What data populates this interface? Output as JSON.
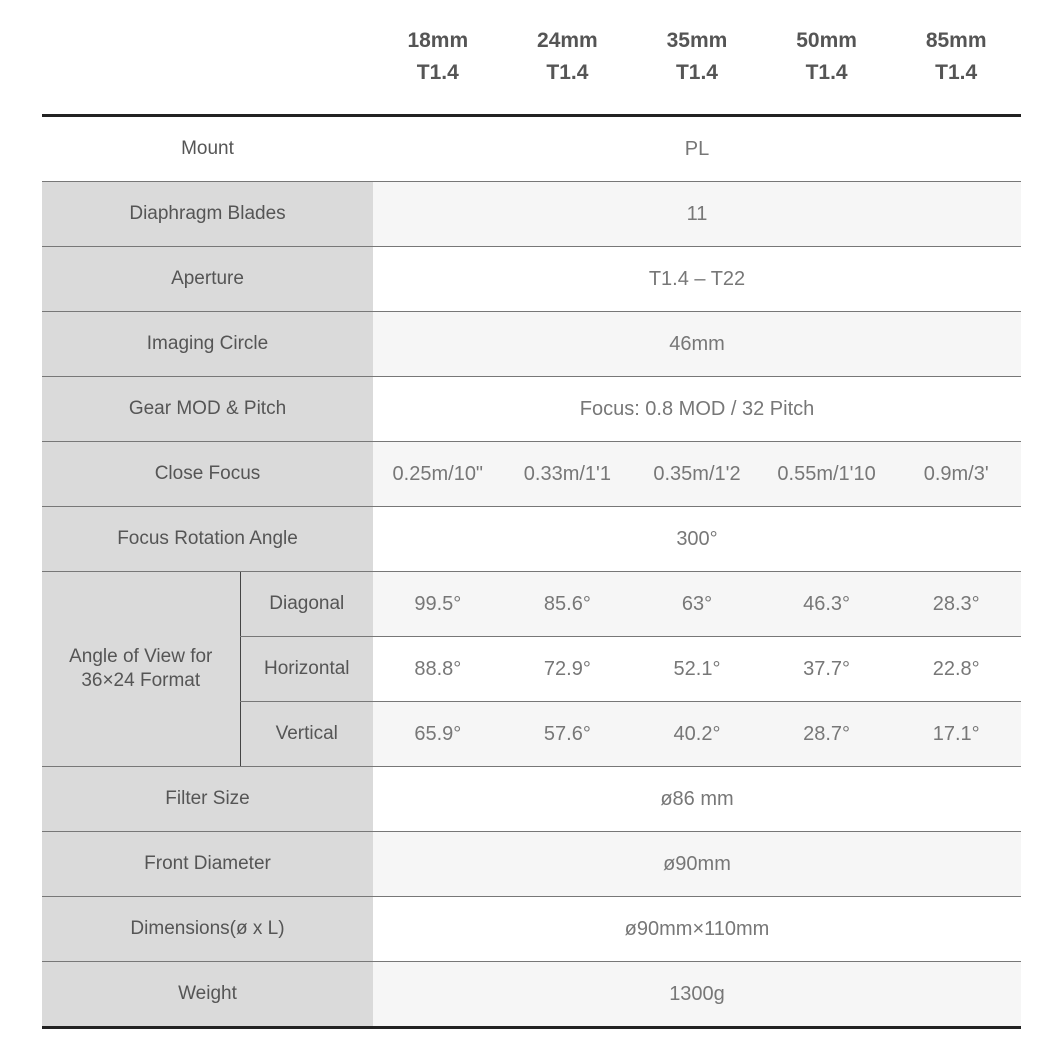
{
  "columns": [
    {
      "focal": "18mm",
      "aperture": "T1.4"
    },
    {
      "focal": "24mm",
      "aperture": "T1.4"
    },
    {
      "focal": "35mm",
      "aperture": "T1.4"
    },
    {
      "focal": "50mm",
      "aperture": "T1.4"
    },
    {
      "focal": "85mm",
      "aperture": "T1.4"
    }
  ],
  "rows": {
    "mount": {
      "label": "Mount",
      "value": "PL"
    },
    "blades": {
      "label": "Diaphragm Blades",
      "value": "11"
    },
    "aperture": {
      "label": "Aperture",
      "value": "T1.4 – T22"
    },
    "circle": {
      "label": "Imaging Circle",
      "value": "46mm"
    },
    "gear": {
      "label": "Gear MOD & Pitch",
      "value": "Focus: 0.8 MOD / 32 Pitch"
    },
    "close_focus": {
      "label": "Close Focus",
      "values": [
        "0.25m/10\"",
        "0.33m/1'1",
        "0.35m/1'2",
        "0.55m/1'10",
        "0.9m/3'"
      ]
    },
    "rotation": {
      "label": "Focus Rotation Angle",
      "value": "300°"
    },
    "aov": {
      "label_line1": "Angle of View for",
      "label_line2": "36×24 Format",
      "diagonal": {
        "label": "Diagonal",
        "values": [
          "99.5°",
          "85.6°",
          "63°",
          "46.3°",
          "28.3°"
        ]
      },
      "horizontal": {
        "label": "Horizontal",
        "values": [
          "88.8°",
          "72.9°",
          "52.1°",
          "37.7°",
          "22.8°"
        ]
      },
      "vertical": {
        "label": "Vertical",
        "values": [
          "65.9°",
          "57.6°",
          "40.2°",
          "28.7°",
          "17.1°"
        ]
      }
    },
    "filter": {
      "label": "Filter Size",
      "value": "ø86 mm"
    },
    "front": {
      "label": "Front Diameter",
      "value": "ø90mm"
    },
    "dimensions": {
      "label": "Dimensions(ø x L)",
      "value": "ø90mm×110mm"
    },
    "weight": {
      "label": "Weight",
      "value": "1300g"
    }
  }
}
